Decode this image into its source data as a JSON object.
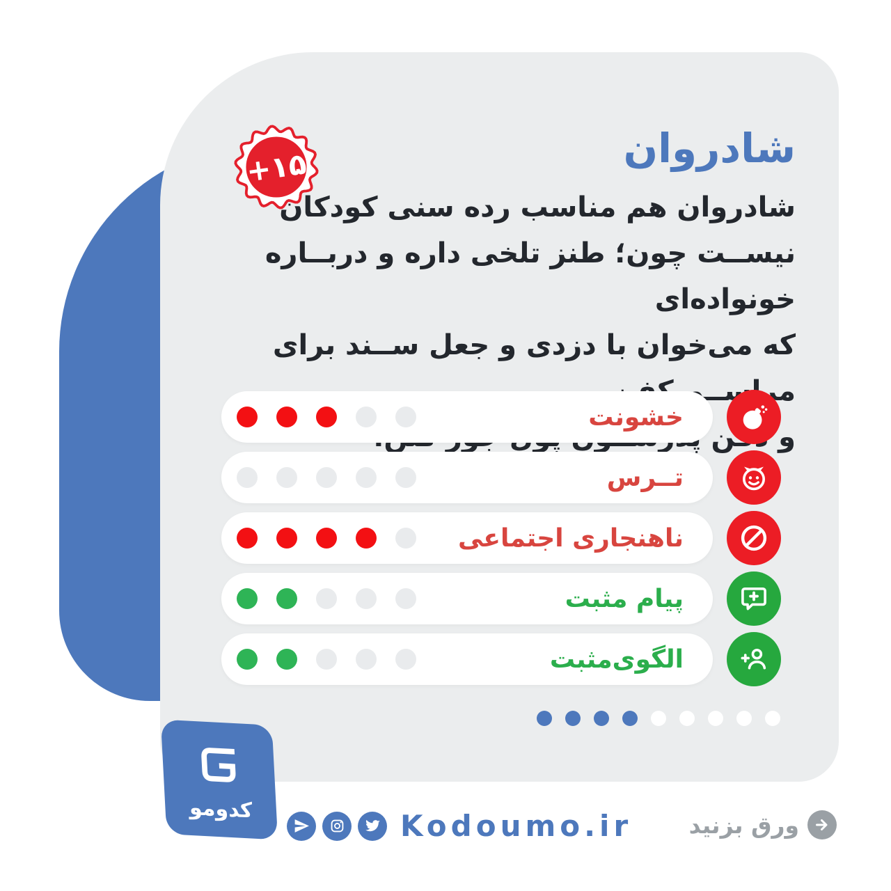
{
  "title": "شادروان",
  "age_badge": "+۱۵",
  "description": {
    "lines": [
      "شادروان هم مناسب رده سنی کودکان",
      "نیســت چون؛ طنز تلخی داره و دربــاره خونواده‌ای",
      "که می‌خوان با دزدی و جعل ســند برای مراســم کفن",
      "و دفن پدرشــون پول جور کنن."
    ]
  },
  "ratings": {
    "max_dots": 5,
    "rows": [
      {
        "label": "خشونت",
        "value": 3,
        "label_color": "#d8453f",
        "dot_color": "#f31013",
        "icon_bg": "#ec1d25",
        "icon": "bomb-icon"
      },
      {
        "label": "تــرس",
        "value": 0,
        "label_color": "#d8453f",
        "dot_color": "#f31013",
        "icon_bg": "#ec1d25",
        "icon": "devil-icon"
      },
      {
        "label": "ناهنجاری اجتماعی",
        "value": 4,
        "label_color": "#d8453f",
        "dot_color": "#f31013",
        "icon_bg": "#ec1d25",
        "icon": "no-entry-icon"
      },
      {
        "label": "پیام مثبت",
        "value": 2,
        "label_color": "#2bae4c",
        "dot_color": "#2eb456",
        "icon_bg": "#26a83e",
        "icon": "chat-plus-icon"
      },
      {
        "label": "الگوی‌مثبت",
        "value": 2,
        "label_color": "#2bae4c",
        "dot_color": "#2eb456",
        "icon_bg": "#26a83e",
        "icon": "person-plus-icon"
      }
    ]
  },
  "pagination": {
    "total": 9,
    "active": 4,
    "active_color": "#4d78bc",
    "inactive_color": "#ffffff"
  },
  "footer": {
    "logo_text": "کدومو",
    "site": "Kodoumo.ir",
    "social": [
      "telegram-icon",
      "instagram-icon",
      "twitter-icon"
    ],
    "swipe_label": "ورق بزنید"
  },
  "colors": {
    "accent_blue": "#4d78bc",
    "card_bg": "#ebedee",
    "badge_red": "#e4202c",
    "empty_dot": "#e9ebed",
    "text_dark": "#23272d",
    "muted_gray": "#9aa0a5"
  }
}
